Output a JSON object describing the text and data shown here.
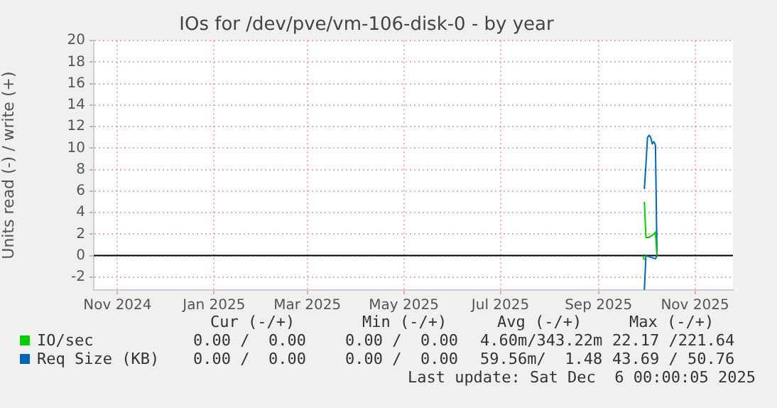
{
  "chart_data": {
    "type": "line",
    "title": "IOs for /dev/pve/vm-106-disk-0 - by year",
    "ylabel": "Units read (-) / write (+)",
    "xlim": [
      "2024-10-17",
      "2025-11-25"
    ],
    "xticks": [
      {
        "value": "2024-11-01",
        "label": "Nov 2024"
      },
      {
        "value": "2025-01-01",
        "label": "Jan 2025"
      },
      {
        "value": "2025-03-01",
        "label": "Mar 2025"
      },
      {
        "value": "2025-05-01",
        "label": "May 2025"
      },
      {
        "value": "2025-07-01",
        "label": "Jul 2025"
      },
      {
        "value": "2025-09-01",
        "label": "Sep 2025"
      },
      {
        "value": "2025-11-01",
        "label": "Nov 2025"
      }
    ],
    "ylim": [
      -3.2,
      20
    ],
    "yticks": [
      -2,
      0,
      2,
      4,
      6,
      8,
      10,
      12,
      14,
      16,
      18,
      20
    ],
    "grid": true,
    "legend": "bottom",
    "series": [
      {
        "name": "IO/sec",
        "color": "#00cc00",
        "x": [
          "2025-09-30",
          "2025-10-01",
          "2025-10-03",
          "2025-10-05",
          "2025-10-06",
          "2025-10-07",
          "2025-10-08"
        ],
        "values": [
          5.0,
          1.7,
          1.7,
          1.9,
          2.0,
          2.2,
          0
        ]
      },
      {
        "name": "Req Size (KB)",
        "color": "#0066b3",
        "x": [
          "2025-09-30",
          "2025-10-01",
          "2025-10-02",
          "2025-10-03",
          "2025-10-04",
          "2025-10-05",
          "2025-10-06",
          "2025-10-07",
          "2025-10-08"
        ],
        "values": [
          6.2,
          8.5,
          11.0,
          11.2,
          11.0,
          10.4,
          10.6,
          10.3,
          0
        ]
      },
      {
        "color": "#0066b3",
        "x": [
          "2025-09-30",
          "2025-10-01",
          "2025-10-07",
          "2025-10-08"
        ],
        "values": [
          -3.2,
          0,
          -0.3,
          0
        ]
      },
      {
        "color": "#00cc00",
        "x": [
          "2025-09-29",
          "2025-09-30"
        ],
        "values": [
          0,
          -0.4
        ]
      }
    ],
    "ref_lines": [
      {
        "axis": "y",
        "value": 0,
        "color": "#000000"
      }
    ],
    "annotations": [
      "Cur (-/+)",
      "Min (-/+)",
      "Avg (-/+)",
      "Max (-/+)",
      "0.00 /  0.00",
      "0.00 /  0.00",
      "4.60m/343.22m",
      "22.17 /221.64",
      "0.00 /  0.00",
      "0.00 /  0.00",
      "59.56m/  1.48",
      "43.69 / 50.76",
      "Last update: Sat Dec  6 00:00:05 2025"
    ]
  }
}
